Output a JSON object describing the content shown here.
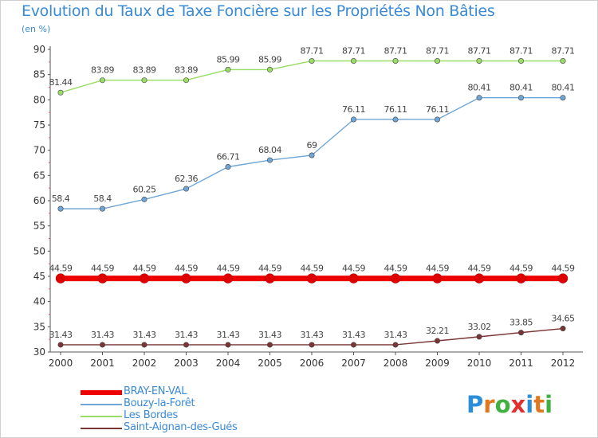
{
  "chart_data": {
    "type": "line",
    "title": "Evolution du Taux de Taxe Foncière sur les Propriétés Non Bâties",
    "subtitle": "(en %)",
    "xlabel": "",
    "ylabel": "(en %)",
    "ylim": [
      30,
      90
    ],
    "yticks": [
      30,
      35,
      40,
      45,
      50,
      55,
      60,
      65,
      70,
      75,
      80,
      85,
      90
    ],
    "categories": [
      "2000",
      "2001",
      "2002",
      "2003",
      "2004",
      "2005",
      "2006",
      "2007",
      "2008",
      "2009",
      "2010",
      "2011",
      "2012"
    ],
    "grid": false,
    "legend_position": "bottom-left",
    "series": [
      {
        "name": "BRAY-EN-VAL",
        "color": "#ee0000",
        "values": [
          44.59,
          44.59,
          44.59,
          44.59,
          44.59,
          44.59,
          44.59,
          44.59,
          44.59,
          44.59,
          44.59,
          44.59,
          44.59
        ],
        "labels": [
          "44.59",
          "44.59",
          "44.59",
          "44.59",
          "44.59",
          "44.59",
          "44.59",
          "44.59",
          "44.59",
          "44.59",
          "44.59",
          "44.59",
          "44.59"
        ]
      },
      {
        "name": "Bouzy-la-Forêt",
        "color": "#6fa6d6",
        "values": [
          58.4,
          58.4,
          60.25,
          62.36,
          66.71,
          68.04,
          69,
          76.11,
          76.11,
          76.11,
          80.41,
          80.41,
          80.41
        ],
        "labels": [
          "58.4",
          "58.4",
          "60.25",
          "62.36",
          "66.71",
          "68.04",
          "69",
          "76.11",
          "76.11",
          "76.11",
          "80.41",
          "80.41",
          "80.41"
        ]
      },
      {
        "name": "Les Bordes",
        "color": "#99dd66",
        "values": [
          81.44,
          83.89,
          83.89,
          83.89,
          85.99,
          85.99,
          87.71,
          87.71,
          87.71,
          87.71,
          87.71,
          87.71,
          87.71
        ],
        "labels": [
          "81.44",
          "83.89",
          "83.89",
          "83.89",
          "85.99",
          "85.99",
          "87.71",
          "87.71",
          "87.71",
          "87.71",
          "87.71",
          "87.71",
          "87.71"
        ]
      },
      {
        "name": "Saint-Aignan-des-Gués",
        "color": "#7a3535",
        "values": [
          31.43,
          31.43,
          31.43,
          31.43,
          31.43,
          31.43,
          31.43,
          31.43,
          31.43,
          32.21,
          33.02,
          33.85,
          34.65
        ],
        "labels": [
          "31.43",
          "31.43",
          "31.43",
          "31.43",
          "31.43",
          "31.43",
          "31.43",
          "31.43",
          "31.43",
          "32.21",
          "33.02",
          "33.85",
          "34.65"
        ]
      }
    ]
  },
  "branding": {
    "logo_text": "Proxiti",
    "logo_letters": [
      "P",
      "r",
      "o",
      "x",
      "i",
      "t",
      "i"
    ],
    "logo_colors": [
      "#2a8fd8",
      "#e07820",
      "#40b040",
      "#e03030",
      "#2a8fd8",
      "#e07820",
      "#40b040"
    ]
  }
}
